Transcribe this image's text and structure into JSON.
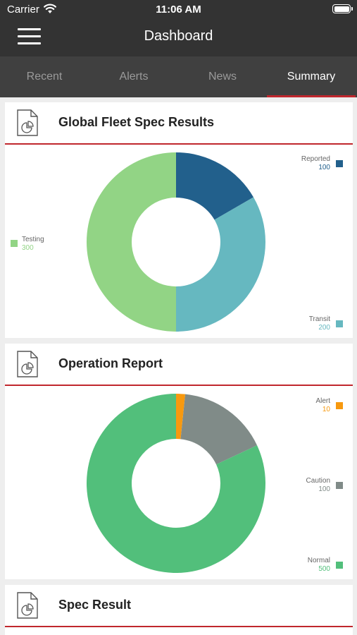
{
  "status_bar": {
    "carrier": "Carrier",
    "time": "11:06 AM"
  },
  "header": {
    "title": "Dashboard"
  },
  "tabs": [
    {
      "label": "Recent",
      "active": false
    },
    {
      "label": "Alerts",
      "active": false
    },
    {
      "label": "News",
      "active": false
    },
    {
      "label": "Summary",
      "active": true
    }
  ],
  "cards": [
    {
      "title": "Global Fleet Spec Results",
      "chart_data": {
        "type": "pie",
        "donut": true,
        "slices": [
          {
            "name": "Reported",
            "value": 100,
            "color": "#22608c"
          },
          {
            "name": "Transit",
            "value": 200,
            "color": "#66b8c0"
          },
          {
            "name": "Testing",
            "value": 300,
            "color": "#92d485"
          }
        ]
      }
    },
    {
      "title": "Operation Report",
      "chart_data": {
        "type": "pie",
        "donut": true,
        "slices": [
          {
            "name": "Alert",
            "value": 10,
            "color": "#f7990f"
          },
          {
            "name": "Caution",
            "value": 100,
            "color": "#808b88"
          },
          {
            "name": "Normal",
            "value": 500,
            "color": "#52bf7b"
          }
        ]
      }
    },
    {
      "title": "Spec Result"
    }
  ]
}
